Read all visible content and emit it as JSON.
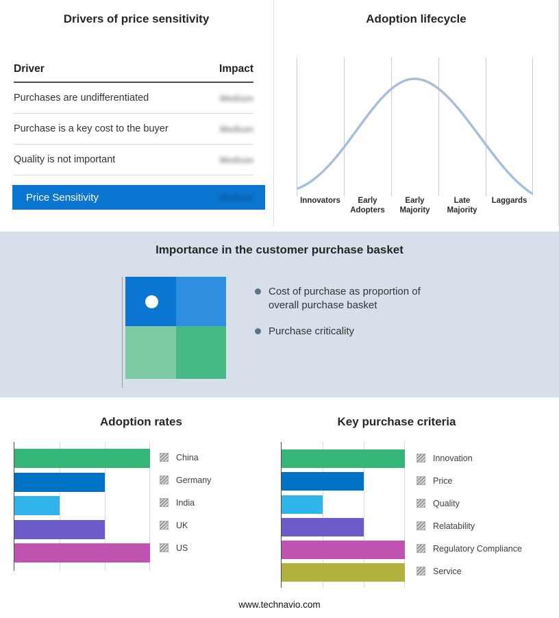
{
  "drivers": {
    "title": "Drivers of price sensitivity",
    "headers": {
      "driver": "Driver",
      "impact": "Impact"
    },
    "rows": [
      {
        "driver": "Purchases are undifferentiated",
        "impact": "Medium"
      },
      {
        "driver": "Purchase is a key cost to the buyer",
        "impact": "Medium"
      },
      {
        "driver": "Quality is not important",
        "impact": "Medium"
      }
    ],
    "summary": {
      "label": "Price Sensitivity",
      "impact": "Medium"
    },
    "note": "impact values are blurred/illegible in the source image"
  },
  "basket": {
    "title": "Importance in the customer purchase basket",
    "bullets": [
      "Cost of purchase as proportion of overall purchase basket",
      "Purchase criticality"
    ]
  },
  "footer": {
    "url": "www.technavio.com"
  },
  "colors": {
    "accent_blue": "#0b76d1",
    "band_bg": "#d7e0ea",
    "quad_tl": "#0b76d1",
    "quad_tr": "#2e8fe0",
    "quad_bl": "#7ccaa4",
    "quad_br": "#46b986",
    "bullet_dot": "#5b7287"
  },
  "chart_data": [
    {
      "type": "line",
      "title": "Adoption lifecycle",
      "categories": [
        "Innovators",
        "Early Adopters",
        "Early Majority",
        "Late Majority",
        "Laggards"
      ],
      "description": "Bell-shaped adoption curve peaking over Early Majority; no numeric axes shown",
      "curve_color": "#a9bed8",
      "gridlines": true
    },
    {
      "type": "bar",
      "title": "Adoption rates",
      "orientation": "horizontal",
      "categories": [
        "China",
        "Germany",
        "India",
        "UK",
        "US"
      ],
      "values": [
        3,
        2,
        1,
        2,
        3
      ],
      "colors": [
        "#35b679",
        "#0072c6",
        "#2fb5ea",
        "#6a5bc8",
        "#c053b0"
      ],
      "xlim": [
        0,
        3
      ],
      "xlabel": "",
      "ylabel": "",
      "gridlines": true,
      "legend_position": "right"
    },
    {
      "type": "bar",
      "title": "Key purchase criteria",
      "orientation": "horizontal",
      "categories": [
        "Innovation",
        "Price",
        "Quality",
        "Relatability",
        "Regulatory Compliance",
        "Service"
      ],
      "values": [
        3,
        2,
        1,
        2,
        3,
        3
      ],
      "colors": [
        "#35b679",
        "#0072c6",
        "#2fb5ea",
        "#6a5bc8",
        "#c053b0",
        "#b3b23c"
      ],
      "xlim": [
        0,
        3
      ],
      "xlabel": "",
      "ylabel": "",
      "gridlines": true,
      "legend_position": "right"
    }
  ]
}
